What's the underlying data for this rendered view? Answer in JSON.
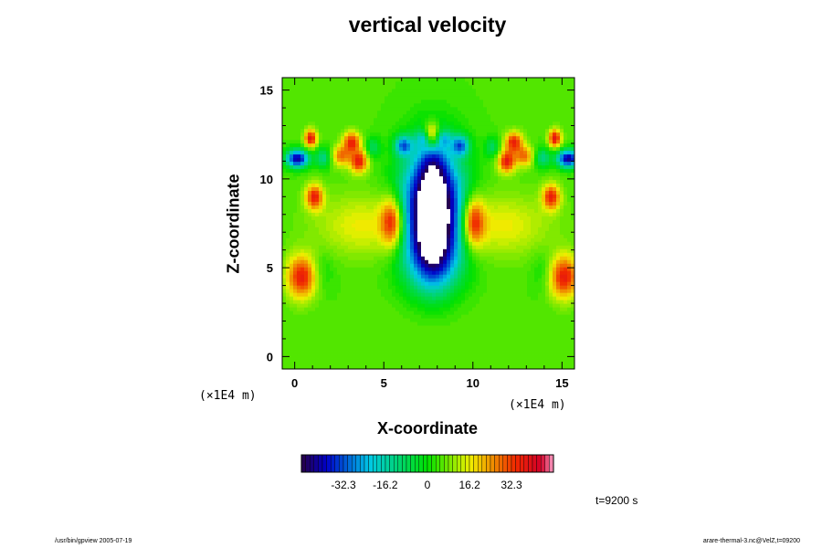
{
  "chart_data": {
    "type": "heatmap",
    "title": "vertical velocity",
    "xlabel": "X-coordinate",
    "ylabel": "Z-coordinate",
    "x_unit": "(×1E4 m)",
    "y_unit": "(×1E4 m)",
    "xlim": [
      -0.7,
      15.7
    ],
    "ylim": [
      -0.7,
      15.7
    ],
    "x_ticks": [
      0,
      5,
      10,
      15
    ],
    "y_ticks": [
      0,
      5,
      10,
      15
    ],
    "x_tick_labels": [
      "0",
      "5",
      "10",
      "15"
    ],
    "y_tick_labels": [
      "0",
      "5",
      "10",
      "15"
    ],
    "background_value": 5,
    "features": [
      {
        "x": 7.0,
        "z": 7.9,
        "sx": 1.0,
        "sz": 2.4,
        "value": -42
      },
      {
        "x": 8.5,
        "z": 7.9,
        "sx": 1.0,
        "sz": 2.4,
        "value": -42
      },
      {
        "x": 7.75,
        "z": 6.0,
        "sx": 0.7,
        "sz": 1.6,
        "value": -20
      },
      {
        "x": 7.75,
        "z": 10.5,
        "sx": 0.6,
        "sz": 1.4,
        "value": -22
      },
      {
        "x": 6.1,
        "z": 11.9,
        "sx": 0.35,
        "sz": 0.4,
        "value": -30
      },
      {
        "x": 9.3,
        "z": 11.9,
        "sx": 0.35,
        "sz": 0.4,
        "value": -30
      },
      {
        "x": 7.2,
        "z": 12.3,
        "sx": 0.3,
        "sz": 0.3,
        "value": -14
      },
      {
        "x": 8.4,
        "z": 12.3,
        "sx": 0.3,
        "sz": 0.3,
        "value": -14
      },
      {
        "x": 5.5,
        "z": 7.6,
        "sx": 0.45,
        "sz": 1.0,
        "value": 32
      },
      {
        "x": 10.0,
        "z": 7.6,
        "sx": 0.45,
        "sz": 1.0,
        "value": 32
      },
      {
        "x": 7.7,
        "z": 12.5,
        "sx": 0.3,
        "sz": 0.5,
        "value": 30
      },
      {
        "x": 0.15,
        "z": 11.15,
        "sx": 0.45,
        "sz": 0.35,
        "value": -48
      },
      {
        "x": 15.35,
        "z": 11.15,
        "sx": 0.45,
        "sz": 0.35,
        "value": -48
      },
      {
        "x": 0.9,
        "z": 12.3,
        "sx": 0.25,
        "sz": 0.35,
        "value": 34
      },
      {
        "x": 14.6,
        "z": 12.3,
        "sx": 0.25,
        "sz": 0.35,
        "value": 34
      },
      {
        "x": 1.6,
        "z": 11.2,
        "sx": 0.3,
        "sz": 0.4,
        "value": -18
      },
      {
        "x": 13.9,
        "z": 11.2,
        "sx": 0.3,
        "sz": 0.4,
        "value": -18
      },
      {
        "x": 3.2,
        "z": 12.1,
        "sx": 0.35,
        "sz": 0.4,
        "value": 30
      },
      {
        "x": 12.3,
        "z": 12.1,
        "sx": 0.35,
        "sz": 0.4,
        "value": 30
      },
      {
        "x": 3.6,
        "z": 11.0,
        "sx": 0.35,
        "sz": 0.45,
        "value": 32
      },
      {
        "x": 11.9,
        "z": 11.0,
        "sx": 0.35,
        "sz": 0.45,
        "value": 32
      },
      {
        "x": 2.6,
        "z": 11.3,
        "sx": 0.35,
        "sz": 0.4,
        "value": 22
      },
      {
        "x": 12.9,
        "z": 11.3,
        "sx": 0.35,
        "sz": 0.4,
        "value": 22
      },
      {
        "x": 4.4,
        "z": 11.8,
        "sx": 0.3,
        "sz": 0.4,
        "value": -14
      },
      {
        "x": 11.1,
        "z": 11.8,
        "sx": 0.3,
        "sz": 0.4,
        "value": -14
      },
      {
        "x": 1.1,
        "z": 9.0,
        "sx": 0.35,
        "sz": 0.5,
        "value": 30
      },
      {
        "x": 14.4,
        "z": 9.0,
        "sx": 0.35,
        "sz": 0.5,
        "value": 30
      },
      {
        "x": 0.4,
        "z": 4.5,
        "sx": 0.6,
        "sz": 0.85,
        "value": 32
      },
      {
        "x": 15.1,
        "z": 4.5,
        "sx": 0.6,
        "sz": 0.85,
        "value": 32
      },
      {
        "x": 1.5,
        "z": 4.8,
        "sx": 0.5,
        "sz": 0.8,
        "value": -6
      },
      {
        "x": 14.0,
        "z": 4.8,
        "sx": 0.5,
        "sz": 0.8,
        "value": -6
      },
      {
        "x": 4.0,
        "z": 7.4,
        "sx": 2.0,
        "sz": 1.2,
        "value": 12
      },
      {
        "x": 11.5,
        "z": 7.4,
        "sx": 2.0,
        "sz": 1.2,
        "value": 12
      },
      {
        "x": 7.75,
        "z": 2.6,
        "sx": 1.8,
        "sz": 1.6,
        "value": 3
      },
      {
        "x": 7.75,
        "z": 4.8,
        "sx": 1.2,
        "sz": 1.0,
        "value": -3
      }
    ],
    "colorbar": {
      "min": -48.45,
      "max": 48.45,
      "step": 1.615,
      "tick_values": [
        -32.3,
        -16.2,
        0,
        16.2,
        32.3
      ],
      "tick_labels": [
        "-32.3",
        "-16.2",
        "0",
        "16.2",
        "32.3"
      ]
    }
  },
  "annotation": {
    "time": "t=9200 s"
  },
  "footer": {
    "left": "/usr/bin/gpview 2005-07-19",
    "right": "arare-thermal-3.nc@VelZ,t=09200"
  }
}
